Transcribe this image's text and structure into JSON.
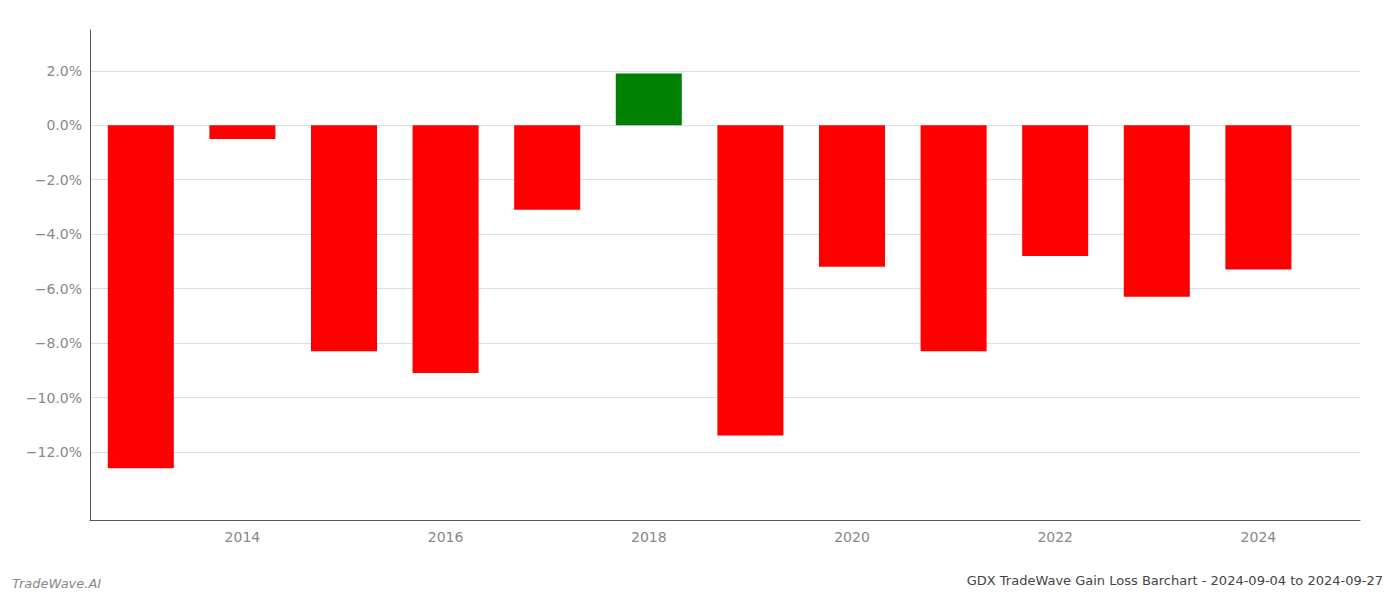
{
  "chart_data": {
    "type": "bar",
    "title": "GDX TradeWave Gain Loss Barchart - 2024-09-04 to 2024-09-27",
    "annotations": [
      "TradeWave.AI"
    ],
    "x": [
      2013,
      2014,
      2015,
      2016,
      2017,
      2018,
      2019,
      2020,
      2021,
      2022,
      2023,
      2024
    ],
    "values": [
      -0.126,
      -0.005,
      -0.083,
      -0.091,
      -0.031,
      0.019,
      -0.114,
      -0.052,
      -0.083,
      -0.048,
      -0.063,
      -0.053
    ],
    "colors": [
      "#ff0000",
      "#ff0000",
      "#ff0000",
      "#ff0000",
      "#ff0000",
      "#008000",
      "#ff0000",
      "#ff0000",
      "#ff0000",
      "#ff0000",
      "#ff0000",
      "#ff0000"
    ],
    "xlim": [
      2012.5,
      2025.0
    ],
    "xticks": [
      2014,
      2016,
      2018,
      2020,
      2022,
      2024
    ],
    "ylim": [
      -0.145,
      0.035
    ],
    "yticks": [
      {
        "value": 0.02,
        "label": "2.0%"
      },
      {
        "value": 0.0,
        "label": "0.0%"
      },
      {
        "value": -0.02,
        "label": "−2.0%"
      },
      {
        "value": -0.04,
        "label": "−4.0%"
      },
      {
        "value": -0.06,
        "label": "−6.0%"
      },
      {
        "value": -0.08,
        "label": "−8.0%"
      },
      {
        "value": -0.1,
        "label": "−10.0%"
      },
      {
        "value": -0.12,
        "label": "−12.0%"
      }
    ],
    "grid": true
  }
}
